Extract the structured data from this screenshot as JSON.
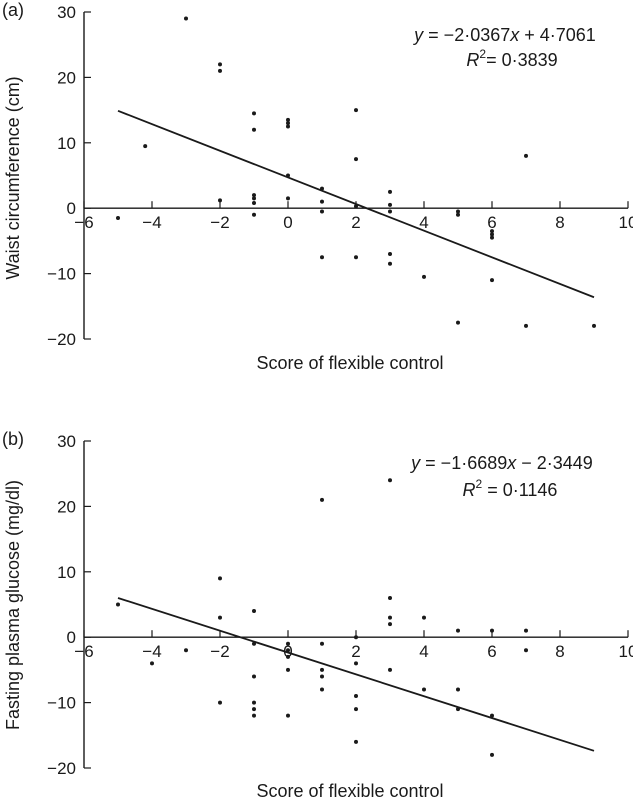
{
  "chart_data": [
    {
      "type": "scatter",
      "panel_label": "(a)",
      "xlabel": "Score of flexible control",
      "ylabel": "Waist circumference (cm)",
      "xlim": [
        -6,
        10
      ],
      "ylim": [
        -20,
        30
      ],
      "xticks": [
        "−6",
        "−4",
        "−2",
        "0",
        "2",
        "4",
        "6",
        "8",
        "10"
      ],
      "yticks": [
        "30",
        "20",
        "10",
        "0",
        "−10",
        "−20"
      ],
      "grid": false,
      "equation": {
        "y_text": "y",
        "body": " = −2·0367",
        "x_text": "x",
        "tail": " + 4·7061",
        "r_text": "R",
        "sup": "2",
        "r_value": "= 0·3839"
      },
      "trendline": {
        "x": [
          -5,
          9
        ],
        "y": [
          14.89,
          -13.62
        ]
      },
      "points": [
        {
          "x": -5,
          "y": -1.5
        },
        {
          "x": -4.2,
          "y": 9.5
        },
        {
          "x": -3,
          "y": 29
        },
        {
          "x": -2,
          "y": 22
        },
        {
          "x": -2,
          "y": 21
        },
        {
          "x": -2,
          "y": 1.2
        },
        {
          "x": -1,
          "y": 14.5
        },
        {
          "x": -1,
          "y": 12
        },
        {
          "x": -1,
          "y": 2
        },
        {
          "x": -1,
          "y": 1.5
        },
        {
          "x": -1,
          "y": 0.8
        },
        {
          "x": -1,
          "y": -1
        },
        {
          "x": 0,
          "y": 13.5
        },
        {
          "x": 0,
          "y": 13
        },
        {
          "x": 0,
          "y": 12.5
        },
        {
          "x": 0,
          "y": 5
        },
        {
          "x": 0,
          "y": 1.5
        },
        {
          "x": 1,
          "y": 3
        },
        {
          "x": 1,
          "y": 1
        },
        {
          "x": 1,
          "y": -0.5
        },
        {
          "x": 1,
          "y": -7.5
        },
        {
          "x": 2,
          "y": 15
        },
        {
          "x": 2,
          "y": 7.5
        },
        {
          "x": 2,
          "y": 0.3
        },
        {
          "x": 2,
          "y": -7.5
        },
        {
          "x": 3,
          "y": 2.5
        },
        {
          "x": 3,
          "y": 0.5
        },
        {
          "x": 3,
          "y": -0.5
        },
        {
          "x": 3,
          "y": -7
        },
        {
          "x": 3,
          "y": -8.5
        },
        {
          "x": 4,
          "y": -10.5
        },
        {
          "x": 5,
          "y": -0.5
        },
        {
          "x": 5,
          "y": -1
        },
        {
          "x": 5,
          "y": -17.5
        },
        {
          "x": 6,
          "y": -3.5
        },
        {
          "x": 6,
          "y": -4
        },
        {
          "x": 6,
          "y": -4.5
        },
        {
          "x": 6,
          "y": -11
        },
        {
          "x": 7,
          "y": 8
        },
        {
          "x": 7,
          "y": -18
        },
        {
          "x": 9,
          "y": -18
        }
      ]
    },
    {
      "type": "scatter",
      "panel_label": "(b)",
      "xlabel": "Score of flexible control",
      "ylabel": "Fasting plasma glucose (mg/dl)",
      "xlim": [
        -6,
        10
      ],
      "ylim": [
        -20,
        30
      ],
      "xticks": [
        "−6",
        "−4",
        "−2",
        "0",
        "2",
        "4",
        "6",
        "8",
        "10"
      ],
      "yticks": [
        "30",
        "20",
        "10",
        "0",
        "−10",
        "−20"
      ],
      "grid": false,
      "equation": {
        "y_text": "y",
        "body": " = −1·6689",
        "x_text": "x",
        "tail": " − 2·3449",
        "r_text": "R",
        "sup": "2",
        "r_value": " = 0·1146"
      },
      "trendline": {
        "x": [
          -5,
          9
        ],
        "y": [
          6.0,
          -17.37
        ]
      },
      "points": [
        {
          "x": -5,
          "y": 5
        },
        {
          "x": -4,
          "y": -4
        },
        {
          "x": -3,
          "y": -2
        },
        {
          "x": -2,
          "y": 9
        },
        {
          "x": -2,
          "y": 3
        },
        {
          "x": -2,
          "y": -10
        },
        {
          "x": -1,
          "y": 4
        },
        {
          "x": -1,
          "y": -1
        },
        {
          "x": -1,
          "y": -6
        },
        {
          "x": -1,
          "y": -10
        },
        {
          "x": -1,
          "y": -11
        },
        {
          "x": -1,
          "y": -12
        },
        {
          "x": 0,
          "y": -1
        },
        {
          "x": 0,
          "y": -2
        },
        {
          "x": 0,
          "y": -3
        },
        {
          "x": 0,
          "y": -5
        },
        {
          "x": 0,
          "y": -12
        },
        {
          "x": 1,
          "y": 21
        },
        {
          "x": 1,
          "y": -1
        },
        {
          "x": 1,
          "y": -5
        },
        {
          "x": 1,
          "y": -6
        },
        {
          "x": 1,
          "y": -8
        },
        {
          "x": 2,
          "y": 0
        },
        {
          "x": 2,
          "y": -4
        },
        {
          "x": 2,
          "y": -9
        },
        {
          "x": 2,
          "y": -11
        },
        {
          "x": 2,
          "y": -16
        },
        {
          "x": 3,
          "y": 24
        },
        {
          "x": 3,
          "y": 6
        },
        {
          "x": 3,
          "y": 3
        },
        {
          "x": 3,
          "y": 2
        },
        {
          "x": 3,
          "y": -5
        },
        {
          "x": 4,
          "y": 3
        },
        {
          "x": 4,
          "y": -8
        },
        {
          "x": 5,
          "y": 1
        },
        {
          "x": 5,
          "y": -8
        },
        {
          "x": 5,
          "y": -11
        },
        {
          "x": 6,
          "y": 1
        },
        {
          "x": 6,
          "y": -12
        },
        {
          "x": 6,
          "y": -18
        },
        {
          "x": 7,
          "y": 1
        },
        {
          "x": 7,
          "y": -2
        }
      ]
    }
  ]
}
